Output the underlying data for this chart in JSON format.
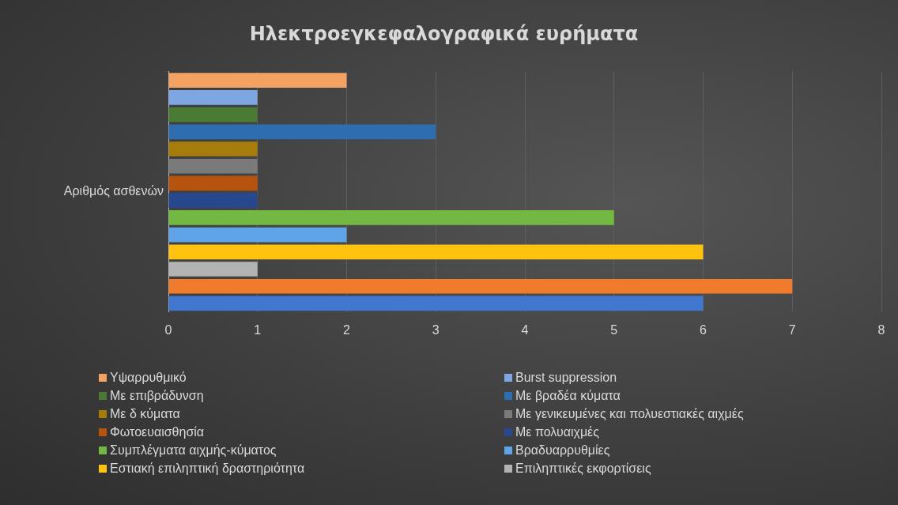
{
  "chart_data": {
    "type": "bar",
    "orientation": "horizontal",
    "title": "Ηλεκτροεγκεφαλογραφικά ευρήματα",
    "ylabel": "Αριθμός ασθενών",
    "categories": [
      null,
      null,
      null,
      null,
      null,
      null,
      null,
      null,
      null,
      null,
      null,
      null,
      null,
      null
    ],
    "series": [
      {
        "name": "Υψαρρυθμικό",
        "color": "#f4a261",
        "values": [
          2,
          null,
          null,
          null,
          null,
          null,
          null,
          null,
          null,
          null,
          null,
          null,
          null,
          null
        ]
      },
      {
        "name": "Burst suppression",
        "color": "#7ea6e0",
        "values": [
          null,
          1,
          null,
          null,
          null,
          null,
          null,
          null,
          null,
          null,
          null,
          null,
          null,
          null
        ]
      },
      {
        "name": "Με επιβράδυνση",
        "color": "#4a7a34",
        "values": [
          null,
          null,
          1,
          null,
          null,
          null,
          null,
          null,
          null,
          null,
          null,
          null,
          null,
          null
        ]
      },
      {
        "name": "Με βραδέα κύματα",
        "color": "#2e6db0",
        "values": [
          null,
          null,
          null,
          3,
          null,
          null,
          null,
          null,
          null,
          null,
          null,
          null,
          null,
          null
        ]
      },
      {
        "name": "Με δ κύματα",
        "color": "#a67c0a",
        "values": [
          null,
          null,
          null,
          null,
          1,
          null,
          null,
          null,
          null,
          null,
          null,
          null,
          null,
          null
        ]
      },
      {
        "name": "Με γενικευμένες και πολυεστιακές αιχμές",
        "color": "#7a7a7a",
        "values": [
          null,
          null,
          null,
          null,
          null,
          1,
          null,
          null,
          null,
          null,
          null,
          null,
          null,
          null
        ]
      },
      {
        "name": "Φωτοευαισθησία",
        "color": "#b5530f",
        "values": [
          null,
          null,
          null,
          null,
          null,
          null,
          1,
          null,
          null,
          null,
          null,
          null,
          null,
          null
        ]
      },
      {
        "name": "Με πολυαιχμές",
        "color": "#27478f",
        "values": [
          null,
          null,
          null,
          null,
          null,
          null,
          null,
          1,
          null,
          null,
          null,
          null,
          null,
          null
        ]
      },
      {
        "name": "Συμπλέγματα αιχμής-κύματος",
        "color": "#72b843",
        "values": [
          null,
          null,
          null,
          null,
          null,
          null,
          null,
          null,
          5,
          null,
          null,
          null,
          null,
          null
        ]
      },
      {
        "name": "Βραδυαρρυθμίες",
        "color": "#5ea4e6",
        "values": [
          null,
          null,
          null,
          null,
          null,
          null,
          null,
          null,
          null,
          2,
          null,
          null,
          null,
          null
        ]
      },
      {
        "name": "Εστιακή επιληπτική δραστηριότητα",
        "color": "#ffc20e",
        "values": [
          null,
          null,
          null,
          null,
          null,
          null,
          null,
          null,
          null,
          null,
          6,
          null,
          null,
          null
        ]
      },
      {
        "name": "Επιληπτικές εκφορτίσεις",
        "color": "#b3b3b3",
        "values": [
          null,
          null,
          null,
          null,
          null,
          null,
          null,
          null,
          null,
          null,
          null,
          1,
          null,
          null
        ]
      },
      {
        "color": "#f07b2c",
        "values": [
          null,
          null,
          null,
          null,
          null,
          null,
          null,
          null,
          null,
          null,
          null,
          null,
          7,
          null
        ]
      },
      {
        "color": "#4277d0",
        "values": [
          null,
          null,
          null,
          null,
          null,
          null,
          null,
          null,
          null,
          null,
          null,
          null,
          null,
          6
        ]
      }
    ],
    "xlim": [
      0,
      8
    ],
    "xticks": [
      0,
      1,
      2,
      3,
      4,
      5,
      6,
      7,
      8
    ],
    "grid": "x",
    "legend": "bottom"
  }
}
